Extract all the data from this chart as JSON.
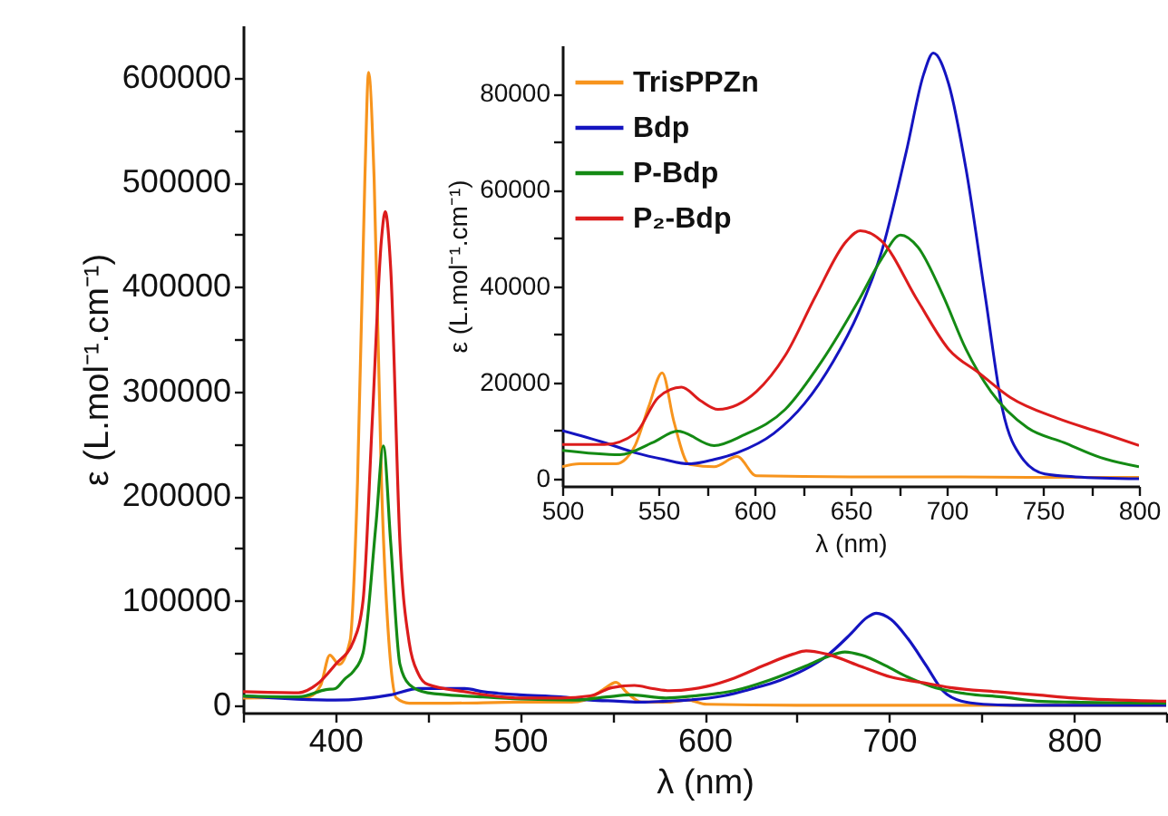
{
  "chart_data": [
    {
      "type": "line",
      "xlabel": "λ (nm)",
      "ylabel": "ε (L.mol⁻¹.cm⁻¹)",
      "xlim": [
        350,
        850
      ],
      "ylim": [
        -7000,
        650000
      ],
      "xticks": [
        {
          "value": 350,
          "label": null
        },
        400,
        {
          "value": 450,
          "label": null
        },
        500,
        {
          "value": 550,
          "label": null
        },
        600,
        {
          "value": 650,
          "label": null
        },
        700,
        {
          "value": 750,
          "label": null
        },
        800,
        {
          "value": 850,
          "label": null
        }
      ],
      "yticks": [
        0,
        {
          "value": 50000,
          "label": null
        },
        100000,
        {
          "value": 150000,
          "label": null
        },
        200000,
        {
          "value": 250000,
          "label": null
        },
        300000,
        {
          "value": 350000,
          "label": null
        },
        400000,
        {
          "value": 450000,
          "label": null
        },
        500000,
        {
          "value": 550000,
          "label": null
        },
        600000
      ],
      "series": [
        {
          "color": "#f7941d",
          "x": [
            350,
            385,
            392,
            397,
            402,
            408,
            412,
            416,
            418,
            421,
            425,
            430,
            433,
            440,
            460,
            500,
            509,
            528,
            535,
            538,
            545,
            552,
            558,
            566,
            579,
            591,
            601,
            650,
            700,
            800,
            850
          ],
          "values": [
            7000,
            8000,
            19000,
            48000,
            39000,
            62000,
            213000,
            504000,
            605000,
            504000,
            213000,
            39000,
            7000,
            2000,
            2000,
            3000,
            3000,
            3000,
            5000,
            7000,
            15000,
            22000,
            12000,
            3000,
            3000,
            5000,
            1000,
            0,
            0,
            0,
            0
          ]
        },
        {
          "color": "#1414c0",
          "x": [
            350,
            400,
            430,
            445,
            470,
            480,
            500,
            522,
            538,
            553,
            566,
            579,
            591,
            610,
            626,
            641,
            654,
            666,
            679,
            688,
            693,
            701,
            710,
            720,
            729,
            739,
            751,
            767,
            800,
            850
          ],
          "values": [
            9000,
            5000,
            10000,
            16000,
            16000,
            13000,
            10000,
            8000,
            5000,
            4000,
            3000,
            4000,
            5000,
            9000,
            16000,
            24000,
            34000,
            47000,
            68000,
            84000,
            88000,
            82000,
            64000,
            38000,
            14000,
            4000,
            1000,
            0,
            0,
            0
          ]
        },
        {
          "color": "#148a14",
          "x": [
            350,
            380,
            395,
            400,
            405,
            410,
            415,
            422,
            426,
            430,
            435,
            440,
            450,
            480,
            500,
            530,
            547,
            560,
            579,
            594,
            616,
            635,
            654,
            666,
            676,
            685,
            698,
            710,
            723,
            742,
            761,
            780,
            800,
            850
          ],
          "values": [
            9000,
            8000,
            15000,
            16000,
            25000,
            33000,
            50000,
            173000,
            248000,
            155000,
            39000,
            20000,
            12000,
            8000,
            6000,
            5000,
            8000,
            10000,
            7000,
            9000,
            14000,
            24000,
            37000,
            46000,
            51000,
            48000,
            38000,
            27000,
            18000,
            11000,
            8000,
            4000,
            3000,
            2000
          ]
        },
        {
          "color": "#dc1c1c",
          "x": [
            350,
            380,
            390,
            400,
            410,
            415,
            420,
            425,
            427,
            430,
            435,
            440,
            445,
            450,
            470,
            500,
            522,
            538,
            550,
            562,
            572,
            581,
            601,
            616,
            632,
            648,
            655,
            666,
            685,
            701,
            717,
            733,
            758,
            780,
            800,
            850
          ],
          "values": [
            13000,
            12000,
            20000,
            39000,
            62000,
            100000,
            272000,
            446000,
            472000,
            417000,
            155000,
            60000,
            30000,
            20000,
            13000,
            7000,
            7000,
            9000,
            17000,
            19000,
            16000,
            14000,
            18000,
            26000,
            38000,
            49000,
            52000,
            49000,
            37000,
            27000,
            22000,
            17000,
            13000,
            10000,
            7000,
            4000
          ]
        }
      ]
    },
    {
      "type": "line",
      "xlabel": "λ (nm)",
      "ylabel": "ε (L.mol⁻¹.cm⁻¹)",
      "xlim": [
        500,
        800
      ],
      "ylim": [
        -1500,
        90000
      ],
      "legend": "top left",
      "xticks": [
        500,
        {
          "value": 525,
          "label": null
        },
        550,
        {
          "value": 575,
          "label": null
        },
        600,
        {
          "value": 625,
          "label": null
        },
        650,
        {
          "value": 675,
          "label": null
        },
        700,
        {
          "value": 725,
          "label": null
        },
        750,
        {
          "value": 775,
          "label": null
        },
        800
      ],
      "yticks": [
        0,
        {
          "value": 10000,
          "label": null
        },
        20000,
        {
          "value": 30000,
          "label": null
        },
        40000,
        {
          "value": 50000,
          "label": null
        },
        60000,
        {
          "value": 70000,
          "label": null
        },
        80000
      ],
      "series": [
        {
          "name": "TrisPPZn",
          "color": "#f7941d",
          "x": [
            500,
            509,
            528,
            535,
            538,
            545,
            552,
            558,
            566,
            579,
            591,
            601,
            650,
            700,
            750,
            800
          ],
          "values": [
            2500,
            3100,
            3100,
            5000,
            7000,
            15000,
            22000,
            12000,
            3000,
            2500,
            4600,
            600,
            400,
            400,
            300,
            300
          ]
        },
        {
          "name": "Bdp",
          "color": "#1414c0",
          "x": [
            500,
            522,
            538,
            553,
            566,
            579,
            591,
            610,
            626,
            641,
            654,
            666,
            679,
            688,
            693,
            701,
            710,
            720,
            729,
            739,
            751,
            767,
            800
          ],
          "values": [
            10000,
            7500,
            5400,
            4000,
            3100,
            4000,
            5400,
            9400,
            15600,
            24400,
            34400,
            47000,
            68000,
            84000,
            88400,
            82000,
            64400,
            38000,
            14400,
            4400,
            1000,
            400,
            0
          ]
        },
        {
          "name": "P-Bdp",
          "color": "#148a14",
          "x": [
            500,
            530,
            547,
            560,
            579,
            594,
            616,
            635,
            654,
            666,
            676,
            685,
            698,
            710,
            723,
            742,
            761,
            780,
            800
          ],
          "values": [
            5900,
            5000,
            7500,
            9900,
            6900,
            9000,
            14400,
            24400,
            36900,
            45600,
            50600,
            48100,
            38100,
            26900,
            18100,
            10600,
            7500,
            4400,
            2500
          ]
        },
        {
          "name": "P₂-Bdp",
          "color": "#dc1c1c",
          "x": [
            500,
            522,
            538,
            550,
            562,
            572,
            581,
            601,
            616,
            632,
            648,
            655,
            666,
            685,
            701,
            717,
            733,
            758,
            780,
            800
          ],
          "values": [
            7100,
            7100,
            9400,
            16900,
            19000,
            16200,
            14400,
            18100,
            25600,
            38100,
            49400,
            51500,
            49400,
            36900,
            26900,
            21900,
            16900,
            12500,
            9600,
            6900
          ]
        }
      ]
    }
  ]
}
